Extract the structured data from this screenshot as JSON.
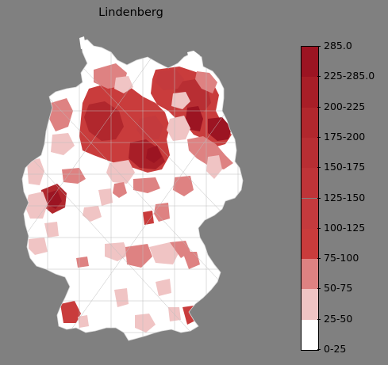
{
  "map": {
    "title": "Lindenberg",
    "region": "Germany districts",
    "background_color": "#808080",
    "no_data_color": "#ffffff",
    "border_color": "#bcbcbc"
  },
  "legend": {
    "bins": [
      {
        "label": "0-25",
        "color": "#ffffff"
      },
      {
        "label": "25-50",
        "color": "#f0c4c4"
      },
      {
        "label": "50-75",
        "color": "#de8282"
      },
      {
        "label": "75-100",
        "color": "#c93c3c"
      },
      {
        "label": "100-125",
        "color": "#c43a3d"
      },
      {
        "label": "125-150",
        "color": "#be3438"
      },
      {
        "label": "150-175",
        "color": "#b82e33"
      },
      {
        "label": "175-200",
        "color": "#b1272d"
      },
      {
        "label": "200-225",
        "color": "#a81e27"
      },
      {
        "label": "225-285.0",
        "color": "#9c1422"
      }
    ],
    "max_label": "285.0",
    "tick_labels": [
      "0-25",
      "25-50",
      "50-75",
      "75-100",
      "100-125",
      "125-150",
      "150-175",
      "175-200",
      "200-225",
      "225-285.0",
      "285.0"
    ]
  }
}
